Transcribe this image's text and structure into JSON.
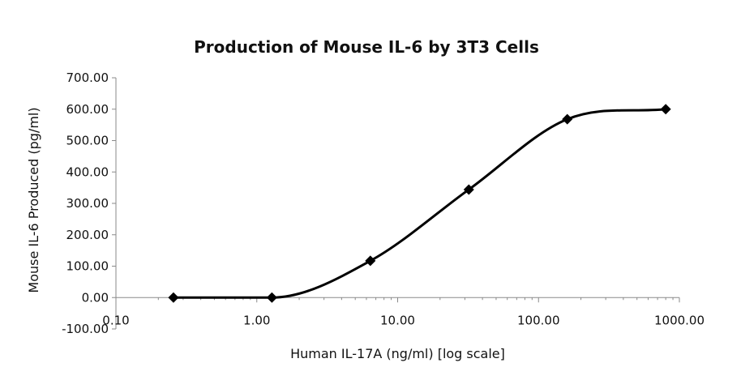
{
  "chart_data": {
    "type": "scatter",
    "title": "Production of Mouse IL-6 by 3T3 Cells",
    "xlabel": "Human IL-17A (ng/ml) [log scale]",
    "ylabel": "Mouse IL-6 Produced (pg/ml)",
    "x_scale": "log",
    "xlim": [
      0.1,
      1000
    ],
    "ylim": [
      -100,
      700
    ],
    "x_ticks": [
      "0.10",
      "1.00",
      "10.00",
      "100.00",
      "1000.00"
    ],
    "y_ticks": [
      "-100.00",
      "0.00",
      "100.00",
      "200.00",
      "300.00",
      "400.00",
      "500.00",
      "600.00",
      "700.00"
    ],
    "grid": false,
    "legend": "none",
    "line": "smooth",
    "marker": "diamond",
    "series": [
      {
        "color": "#000000",
        "x": [
          0.256,
          1.28,
          6.4,
          32,
          160,
          800
        ],
        "y": [
          0,
          0,
          117,
          344,
          568,
          600
        ]
      }
    ]
  }
}
